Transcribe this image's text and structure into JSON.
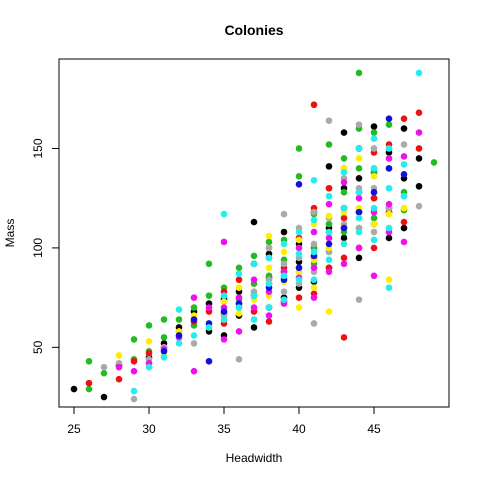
{
  "chart_data": {
    "type": "scatter",
    "title": "Colonies",
    "xlabel": "Headwidth",
    "ylabel": "Mass",
    "xlim": [
      24,
      50
    ],
    "ylim": [
      20,
      195
    ],
    "xticks": [
      25,
      30,
      35,
      40,
      45
    ],
    "yticks": [
      50,
      100,
      150
    ],
    "grid": false,
    "legend": "none",
    "series": [
      {
        "color": "#000000",
        "points": [
          [
            25,
            29
          ],
          [
            27,
            25
          ],
          [
            28,
            41
          ],
          [
            30,
            45
          ],
          [
            31,
            52
          ],
          [
            32,
            60
          ],
          [
            33,
            68
          ],
          [
            34,
            72
          ],
          [
            34,
            58
          ],
          [
            35,
            74
          ],
          [
            35,
            56
          ],
          [
            36,
            78
          ],
          [
            36,
            66
          ],
          [
            37,
            92
          ],
          [
            37,
            113
          ],
          [
            37,
            60
          ],
          [
            38,
            85
          ],
          [
            38,
            97
          ],
          [
            38,
            70
          ],
          [
            39,
            108
          ],
          [
            39,
            88
          ],
          [
            39,
            75
          ],
          [
            40,
            102
          ],
          [
            40,
            93
          ],
          [
            40,
            80
          ],
          [
            41,
            118
          ],
          [
            41,
            100
          ],
          [
            41,
            83
          ],
          [
            42,
            141
          ],
          [
            42,
            110
          ],
          [
            42,
            90
          ],
          [
            43,
            158
          ],
          [
            43,
            130
          ],
          [
            43,
            105
          ],
          [
            43,
            120
          ],
          [
            44,
            150
          ],
          [
            44,
            118
          ],
          [
            44,
            95
          ],
          [
            44,
            135
          ],
          [
            45,
            161
          ],
          [
            45,
            138
          ],
          [
            45,
            112
          ],
          [
            45,
            125
          ],
          [
            46,
            148
          ],
          [
            46,
            120
          ],
          [
            46,
            105
          ],
          [
            47,
            160
          ],
          [
            47,
            135
          ],
          [
            47,
            110
          ],
          [
            48,
            145
          ],
          [
            48,
            131
          ]
        ]
      },
      {
        "color": "#22bb22",
        "points": [
          [
            26,
            43
          ],
          [
            26,
            29
          ],
          [
            27,
            37
          ],
          [
            29,
            54
          ],
          [
            29,
            44
          ],
          [
            30,
            61
          ],
          [
            30,
            48
          ],
          [
            31,
            64
          ],
          [
            31,
            55
          ],
          [
            32,
            64
          ],
          [
            33,
            70
          ],
          [
            33,
            61
          ],
          [
            34,
            92
          ],
          [
            34,
            76
          ],
          [
            35,
            80
          ],
          [
            35,
            67
          ],
          [
            36,
            90
          ],
          [
            36,
            74
          ],
          [
            37,
            96
          ],
          [
            37,
            82
          ],
          [
            38,
            103
          ],
          [
            38,
            86
          ],
          [
            39,
            104
          ],
          [
            39,
            94
          ],
          [
            40,
            150
          ],
          [
            40,
            136
          ],
          [
            40,
            100
          ],
          [
            40,
            88
          ],
          [
            41,
            117
          ],
          [
            41,
            100
          ],
          [
            41,
            92
          ],
          [
            42,
            152
          ],
          [
            42,
            130
          ],
          [
            42,
            112
          ],
          [
            42,
            98
          ],
          [
            43,
            145
          ],
          [
            43,
            128
          ],
          [
            43,
            108
          ],
          [
            44,
            188
          ],
          [
            44,
            160
          ],
          [
            44,
            140
          ],
          [
            44,
            110
          ],
          [
            45,
            158
          ],
          [
            45,
            138
          ],
          [
            45,
            115
          ],
          [
            46,
            162
          ],
          [
            46,
            140
          ],
          [
            46,
            118
          ],
          [
            47,
            128
          ],
          [
            47,
            119
          ],
          [
            49,
            143
          ]
        ]
      },
      {
        "color": "#ee1111",
        "points": [
          [
            26,
            32
          ],
          [
            28,
            34
          ],
          [
            29,
            43
          ],
          [
            30,
            47
          ],
          [
            31,
            50
          ],
          [
            32,
            58
          ],
          [
            33,
            63
          ],
          [
            34,
            68
          ],
          [
            35,
            78
          ],
          [
            35,
            62
          ],
          [
            36,
            84
          ],
          [
            36,
            70
          ],
          [
            37,
            92
          ],
          [
            37,
            68
          ],
          [
            38,
            100
          ],
          [
            38,
            82
          ],
          [
            38,
            63
          ],
          [
            39,
            90
          ],
          [
            39,
            73
          ],
          [
            40,
            105
          ],
          [
            40,
            90
          ],
          [
            40,
            75
          ],
          [
            41,
            172
          ],
          [
            41,
            120
          ],
          [
            41,
            95
          ],
          [
            41,
            77
          ],
          [
            42,
            130
          ],
          [
            42,
            108
          ],
          [
            42,
            90
          ],
          [
            43,
            55
          ],
          [
            43,
            140
          ],
          [
            43,
            115
          ],
          [
            43,
            95
          ],
          [
            44,
            128
          ],
          [
            44,
            100
          ],
          [
            45,
            148
          ],
          [
            45,
            125
          ],
          [
            45,
            100
          ],
          [
            46,
            152
          ],
          [
            46,
            118
          ],
          [
            47,
            165
          ],
          [
            47,
            113
          ],
          [
            48,
            168
          ],
          [
            48,
            150
          ]
        ]
      },
      {
        "color": "#aaaaaa",
        "points": [
          [
            27,
            40
          ],
          [
            28,
            42
          ],
          [
            29,
            24
          ],
          [
            30,
            44
          ],
          [
            31,
            50
          ],
          [
            32,
            56
          ],
          [
            33,
            52
          ],
          [
            34,
            60
          ],
          [
            35,
            66
          ],
          [
            36,
            44
          ],
          [
            36,
            72
          ],
          [
            37,
            78
          ],
          [
            37,
            64
          ],
          [
            38,
            100
          ],
          [
            38,
            84
          ],
          [
            39,
            117
          ],
          [
            39,
            92
          ],
          [
            39,
            78
          ],
          [
            40,
            110
          ],
          [
            40,
            95
          ],
          [
            40,
            82
          ],
          [
            41,
            62
          ],
          [
            41,
            118
          ],
          [
            41,
            102
          ],
          [
            41,
            88
          ],
          [
            42,
            164
          ],
          [
            42,
            115
          ],
          [
            42,
            98
          ],
          [
            43,
            135
          ],
          [
            43,
            112
          ],
          [
            44,
            162
          ],
          [
            44,
            74
          ],
          [
            44,
            130
          ],
          [
            44,
            110
          ],
          [
            45,
            150
          ],
          [
            45,
            130
          ],
          [
            45,
            108
          ],
          [
            46,
            145
          ],
          [
            46,
            120
          ],
          [
            47,
            152
          ],
          [
            47,
            126
          ],
          [
            48,
            121
          ]
        ]
      },
      {
        "color": "#ffee00",
        "points": [
          [
            28,
            46
          ],
          [
            30,
            53
          ],
          [
            31,
            46
          ],
          [
            32,
            58
          ],
          [
            33,
            66
          ],
          [
            34,
            60
          ],
          [
            35,
            64
          ],
          [
            35,
            73
          ],
          [
            36,
            80
          ],
          [
            36,
            67
          ],
          [
            37,
            74
          ],
          [
            38,
            106
          ],
          [
            38,
            90
          ],
          [
            38,
            76
          ],
          [
            39,
            98
          ],
          [
            39,
            83
          ],
          [
            40,
            70
          ],
          [
            40,
            104
          ],
          [
            40,
            88
          ],
          [
            41,
            112
          ],
          [
            41,
            94
          ],
          [
            41,
            80
          ],
          [
            42,
            68
          ],
          [
            42,
            116
          ],
          [
            42,
            100
          ],
          [
            43,
            140
          ],
          [
            43,
            118
          ],
          [
            43,
            102
          ],
          [
            44,
            145
          ],
          [
            44,
            120
          ],
          [
            45,
            136
          ],
          [
            45,
            112
          ],
          [
            46,
            84
          ],
          [
            46,
            140
          ],
          [
            46,
            117
          ],
          [
            47,
            120
          ]
        ]
      },
      {
        "color": "#ee11ee",
        "points": [
          [
            28,
            40
          ],
          [
            29,
            38
          ],
          [
            30,
            42
          ],
          [
            31,
            49
          ],
          [
            32,
            55
          ],
          [
            33,
            75
          ],
          [
            33,
            38
          ],
          [
            34,
            70
          ],
          [
            35,
            103
          ],
          [
            35,
            70
          ],
          [
            35,
            54
          ],
          [
            36,
            75
          ],
          [
            36,
            58
          ],
          [
            37,
            84
          ],
          [
            37,
            70
          ],
          [
            38,
            95
          ],
          [
            38,
            78
          ],
          [
            38,
            66
          ],
          [
            39,
            88
          ],
          [
            39,
            72
          ],
          [
            40,
            85
          ],
          [
            40,
            100
          ],
          [
            41,
            108
          ],
          [
            41,
            90
          ],
          [
            41,
            75
          ],
          [
            42,
            122
          ],
          [
            42,
            105
          ],
          [
            42,
            88
          ],
          [
            43,
            133
          ],
          [
            43,
            110
          ],
          [
            43,
            92
          ],
          [
            44,
            100
          ],
          [
            44,
            125
          ],
          [
            45,
            86
          ],
          [
            45,
            140
          ],
          [
            45,
            118
          ],
          [
            46,
            145
          ],
          [
            46,
            122
          ],
          [
            46,
            108
          ],
          [
            47,
            146
          ],
          [
            47,
            103
          ],
          [
            48,
            158
          ]
        ]
      },
      {
        "color": "#1111dd",
        "points": [
          [
            31,
            48
          ],
          [
            32,
            56
          ],
          [
            33,
            64
          ],
          [
            34,
            43
          ],
          [
            34,
            62
          ],
          [
            35,
            68
          ],
          [
            36,
            72
          ],
          [
            37,
            76
          ],
          [
            38,
            80
          ],
          [
            39,
            84
          ],
          [
            40,
            132
          ],
          [
            40,
            90
          ],
          [
            41,
            96
          ],
          [
            42,
            102
          ],
          [
            43,
            110
          ],
          [
            44,
            118
          ],
          [
            45,
            128
          ],
          [
            46,
            165
          ],
          [
            46,
            140
          ],
          [
            47,
            137
          ]
        ]
      },
      {
        "color": "#22eeee",
        "points": [
          [
            29,
            28
          ],
          [
            30,
            40
          ],
          [
            31,
            45
          ],
          [
            32,
            69
          ],
          [
            32,
            52
          ],
          [
            33,
            56
          ],
          [
            34,
            60
          ],
          [
            35,
            117
          ],
          [
            35,
            64
          ],
          [
            35,
            76
          ],
          [
            36,
            87
          ],
          [
            36,
            70
          ],
          [
            37,
            92
          ],
          [
            37,
            76
          ],
          [
            37,
            64
          ],
          [
            38,
            82
          ],
          [
            38,
            95
          ],
          [
            38,
            70
          ],
          [
            39,
            102
          ],
          [
            39,
            86
          ],
          [
            39,
            74
          ],
          [
            40,
            97
          ],
          [
            40,
            84
          ],
          [
            40,
            108
          ],
          [
            41,
            134
          ],
          [
            41,
            114
          ],
          [
            41,
            98
          ],
          [
            41,
            84
          ],
          [
            42,
            126
          ],
          [
            42,
            108
          ],
          [
            42,
            94
          ],
          [
            43,
            138
          ],
          [
            43,
            120
          ],
          [
            43,
            102
          ],
          [
            44,
            150
          ],
          [
            44,
            128
          ],
          [
            44,
            108
          ],
          [
            44,
            115
          ],
          [
            45,
            155
          ],
          [
            45,
            140
          ],
          [
            45,
            120
          ],
          [
            45,
            104
          ],
          [
            46,
            150
          ],
          [
            46,
            80
          ],
          [
            46,
            130
          ],
          [
            46,
            110
          ],
          [
            47,
            142
          ],
          [
            47,
            126
          ],
          [
            48,
            188
          ]
        ]
      }
    ]
  }
}
